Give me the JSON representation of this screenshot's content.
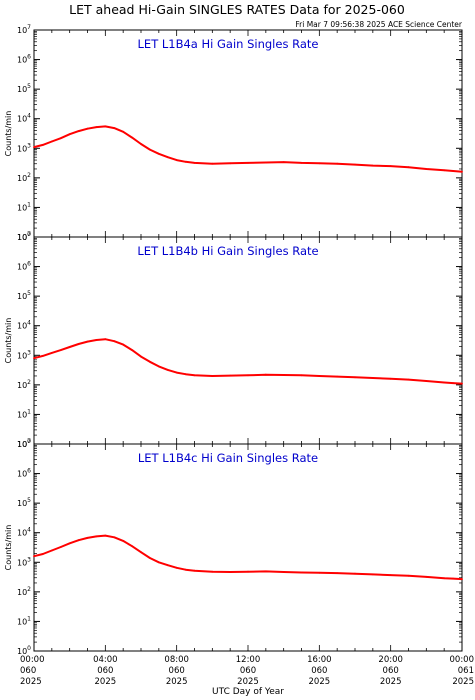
{
  "header": {
    "title": "LET ahead Hi-Gain SINGLES RATES Data for 2025-060",
    "timestamp": "Fri Mar  7 09:56:38 2025 ACE Science Center"
  },
  "colors": {
    "line": "#ff0000",
    "panel_title": "#0000cc",
    "axes": "#000000"
  },
  "chart_data": [
    {
      "type": "line",
      "title": "LET L1B4a Hi Gain Singles Rate",
      "ylabel": "Counts/min",
      "yscale": "log",
      "ylim": [
        1,
        10000000
      ],
      "ytick_labels": [
        "10^0",
        "10^1",
        "10^2",
        "10^3",
        "10^4",
        "10^5",
        "10^6",
        "10^7"
      ],
      "xlim": [
        0,
        24
      ],
      "x_hours": [
        0,
        0.5,
        1,
        1.5,
        2,
        2.5,
        3,
        3.5,
        4,
        4.5,
        5,
        5.5,
        6,
        6.5,
        7,
        7.5,
        8,
        8.5,
        9,
        10,
        11,
        12,
        13,
        14,
        15,
        16,
        17,
        18,
        19,
        20,
        21,
        22,
        23,
        23.5,
        24
      ],
      "values": [
        1100,
        1300,
        1700,
        2200,
        3000,
        3800,
        4600,
        5200,
        5500,
        4800,
        3600,
        2300,
        1400,
        900,
        650,
        500,
        400,
        350,
        320,
        300,
        310,
        320,
        330,
        340,
        320,
        310,
        300,
        280,
        260,
        250,
        230,
        200,
        180,
        170,
        160
      ]
    },
    {
      "type": "line",
      "title": "LET L1B4b Hi Gain Singles Rate",
      "ylabel": "Counts/min",
      "yscale": "log",
      "ylim": [
        1,
        10000000
      ],
      "ytick_labels": [
        "10^0",
        "10^1",
        "10^2",
        "10^3",
        "10^4",
        "10^5",
        "10^6",
        "10^7"
      ],
      "xlim": [
        0,
        24
      ],
      "x_hours": [
        0,
        0.5,
        1,
        1.5,
        2,
        2.5,
        3,
        3.5,
        4,
        4.5,
        5,
        5.5,
        6,
        6.5,
        7,
        7.5,
        8,
        8.5,
        9,
        10,
        11,
        12,
        13,
        14,
        15,
        16,
        17,
        18,
        19,
        20,
        21,
        22,
        23,
        23.5,
        24
      ],
      "values": [
        800,
        950,
        1200,
        1500,
        1900,
        2400,
        2900,
        3300,
        3500,
        3000,
        2300,
        1500,
        900,
        600,
        420,
        320,
        260,
        230,
        210,
        200,
        205,
        210,
        220,
        215,
        210,
        200,
        190,
        180,
        170,
        160,
        150,
        135,
        120,
        115,
        110
      ]
    },
    {
      "type": "line",
      "title": "LET L1B4c Hi Gain Singles Rate",
      "ylabel": "Counts/min",
      "yscale": "log",
      "ylim": [
        1,
        10000000
      ],
      "ytick_labels": [
        "10^0",
        "10^1",
        "10^2",
        "10^3",
        "10^4",
        "10^5",
        "10^6",
        "10^7"
      ],
      "xlim": [
        0,
        24
      ],
      "x_hours": [
        0,
        0.5,
        1,
        1.5,
        2,
        2.5,
        3,
        3.5,
        4,
        4.5,
        5,
        5.5,
        6,
        6.5,
        7,
        7.5,
        8,
        8.5,
        9,
        10,
        11,
        12,
        13,
        14,
        15,
        16,
        17,
        18,
        19,
        20,
        21,
        22,
        23,
        23.5,
        24
      ],
      "values": [
        1600,
        1900,
        2500,
        3300,
        4400,
        5600,
        6700,
        7500,
        8000,
        7000,
        5300,
        3500,
        2200,
        1400,
        1000,
        800,
        650,
        560,
        520,
        480,
        470,
        480,
        490,
        470,
        450,
        440,
        430,
        410,
        390,
        370,
        350,
        320,
        290,
        280,
        270
      ]
    }
  ],
  "xaxis": {
    "label": "UTC Day of Year",
    "ticks": [
      {
        "hour": 0,
        "time": "00:00",
        "doy": "060",
        "year": "2025"
      },
      {
        "hour": 4,
        "time": "04:00",
        "doy": "060",
        "year": "2025"
      },
      {
        "hour": 8,
        "time": "08:00",
        "doy": "060",
        "year": "2025"
      },
      {
        "hour": 12,
        "time": "12:00",
        "doy": "060",
        "year": "2025"
      },
      {
        "hour": 16,
        "time": "16:00",
        "doy": "060",
        "year": "2025"
      },
      {
        "hour": 20,
        "time": "20:00",
        "doy": "060",
        "year": "2025"
      },
      {
        "hour": 24,
        "time": "00:00",
        "doy": "061",
        "year": "2025"
      }
    ]
  }
}
